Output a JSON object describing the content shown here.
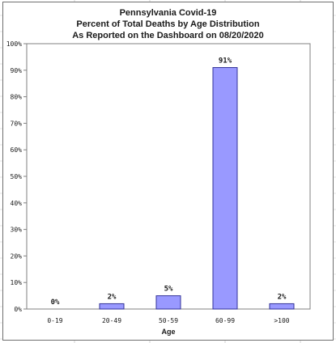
{
  "chart_data": {
    "type": "bar",
    "title": [
      "Pennsylvania Covid-19",
      "Percent of Total Deaths by Age Distribution",
      "As Reported on the Dashboard on 08/20/2020"
    ],
    "xlabel": "Age",
    "ylabel": "",
    "categories": [
      "0-19",
      "20-49",
      "50-59",
      "60-99",
      ">100"
    ],
    "values": [
      0,
      2,
      5,
      91,
      2
    ],
    "data_labels": [
      "0%",
      "2%",
      "5%",
      "91%",
      "2%"
    ],
    "y_ticks": [
      "0%",
      "10%",
      "20%",
      "30%",
      "40%",
      "50%",
      "60%",
      "70%",
      "80%",
      "90%",
      "100%"
    ],
    "ylim": [
      0,
      100
    ],
    "grid": false,
    "legend": false,
    "bar_color": "#9999ff",
    "bar_edge_color": "#333399"
  }
}
